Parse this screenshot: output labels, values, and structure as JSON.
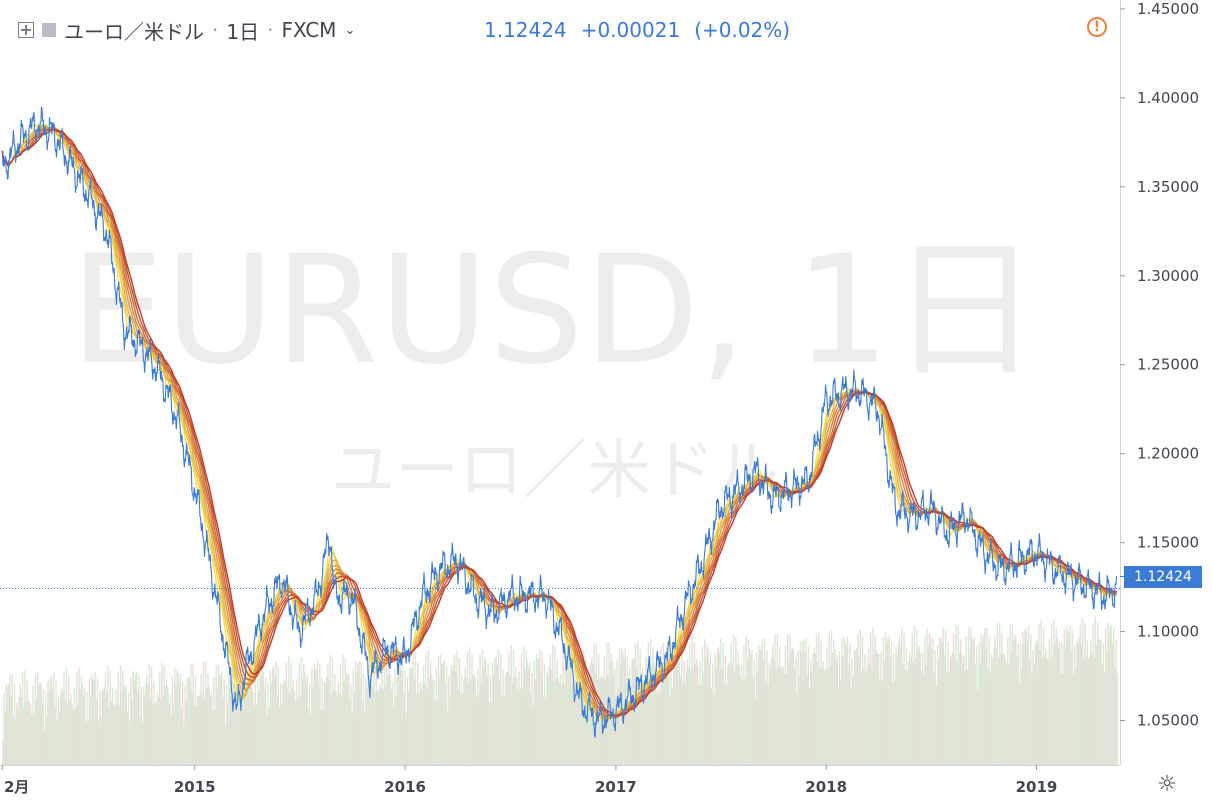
{
  "header": {
    "symbol": "ユーロ／米ドル",
    "interval": "1日",
    "exchange": "FXCM",
    "price": "1.12424",
    "change": "+0.00021",
    "change_pct": "(+0.02%)"
  },
  "watermark": {
    "main": "EURUSD, 1日",
    "sub": "ユーロ／米ドル"
  },
  "last_price_label": "1.12424",
  "colors": {
    "price_line": "#3a7bd5",
    "ribbon_dark": "#c0392b",
    "ribbon_light": "#f6e14a",
    "volume": "#d9ead5",
    "text": "#434651"
  },
  "chart_data": {
    "type": "line",
    "title": "",
    "xlabel": "",
    "ylabel": "",
    "ylim": [
      1.025,
      1.455
    ],
    "x_ticks": [
      "2月",
      "2015",
      "2016",
      "2017",
      "2018",
      "2019"
    ],
    "x_tick_dates": [
      "2014-02-01",
      "2015-01-01",
      "2016-01-01",
      "2017-01-01",
      "2018-01-01",
      "2019-01-01"
    ],
    "y_ticks": [
      "1.05000",
      "1.10000",
      "1.15000",
      "1.20000",
      "1.25000",
      "1.30000",
      "1.35000",
      "1.40000",
      "1.45000"
    ],
    "y_tick_values": [
      1.05,
      1.1,
      1.15,
      1.2,
      1.25,
      1.3,
      1.35,
      1.4,
      1.45
    ],
    "x_range": [
      "2014-02-01",
      "2019-05-20"
    ],
    "last_price": 1.12424,
    "series": [
      {
        "x": [
          "2014-02-01",
          "2014-03-01",
          "2014-04-01",
          "2014-05-01",
          "2014-06-01",
          "2014-07-01",
          "2014-08-01",
          "2014-09-01",
          "2014-10-01",
          "2014-11-01",
          "2014-12-01",
          "2015-01-01",
          "2015-01-20",
          "2015-02-01",
          "2015-03-01",
          "2015-03-15",
          "2015-04-01",
          "2015-05-01",
          "2015-06-01",
          "2015-07-01",
          "2015-08-01",
          "2015-08-24",
          "2015-09-01",
          "2015-10-01",
          "2015-11-01",
          "2015-12-01",
          "2016-01-01",
          "2016-02-01",
          "2016-03-01",
          "2016-04-01",
          "2016-05-01",
          "2016-06-01",
          "2016-07-01",
          "2016-08-01",
          "2016-09-01",
          "2016-10-01",
          "2016-11-01",
          "2016-12-01",
          "2017-01-01",
          "2017-02-01",
          "2017-03-01",
          "2017-04-01",
          "2017-05-01",
          "2017-06-01",
          "2017-07-01",
          "2017-08-01",
          "2017-09-01",
          "2017-10-01",
          "2017-11-01",
          "2017-12-01",
          "2018-01-01",
          "2018-02-01",
          "2018-03-01",
          "2018-04-01",
          "2018-05-01",
          "2018-06-01",
          "2018-07-01",
          "2018-08-01",
          "2018-09-01",
          "2018-10-01",
          "2018-11-01",
          "2018-12-01",
          "2019-01-01",
          "2019-02-01",
          "2019-03-01",
          "2019-04-01",
          "2019-05-01",
          "2019-05-20"
        ],
        "values": [
          1.36,
          1.375,
          1.385,
          1.38,
          1.362,
          1.345,
          1.325,
          1.27,
          1.26,
          1.245,
          1.22,
          1.18,
          1.15,
          1.13,
          1.08,
          1.055,
          1.08,
          1.11,
          1.13,
          1.1,
          1.12,
          1.155,
          1.12,
          1.12,
          1.075,
          1.09,
          1.085,
          1.12,
          1.135,
          1.14,
          1.12,
          1.11,
          1.12,
          1.12,
          1.12,
          1.095,
          1.06,
          1.05,
          1.055,
          1.065,
          1.075,
          1.085,
          1.115,
          1.14,
          1.17,
          1.18,
          1.19,
          1.175,
          1.18,
          1.185,
          1.23,
          1.235,
          1.235,
          1.225,
          1.17,
          1.165,
          1.17,
          1.155,
          1.165,
          1.145,
          1.135,
          1.14,
          1.145,
          1.135,
          1.13,
          1.125,
          1.12,
          1.12424
        ]
      }
    ]
  }
}
